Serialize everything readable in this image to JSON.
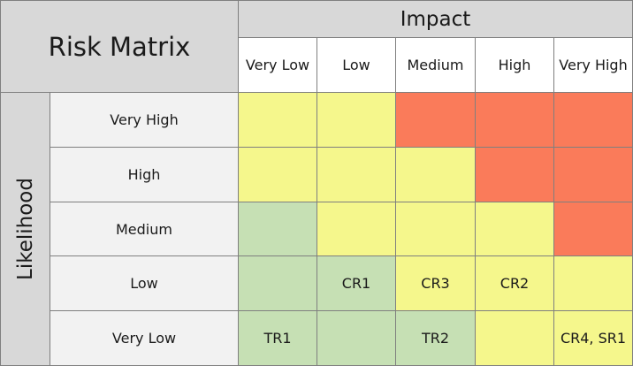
{
  "title": "Risk Matrix",
  "impact_label": "Impact",
  "likelihood_label": "Likelihood",
  "impact_levels": [
    "Very Low",
    "Low",
    "Medium",
    "High",
    "Very High"
  ],
  "likelihood_levels": [
    "Very High",
    "High",
    "Medium",
    "Low",
    "Very Low"
  ],
  "colors": {
    "header_gray": "#d8d8d8",
    "row_label_bg": "#f2f2f2",
    "green": "#c6e0b4",
    "yellow": "#f5f78c",
    "red": "#fa7b5a",
    "border": "#7f7f7f"
  },
  "grid": [
    [
      {
        "color": "yellow",
        "label": ""
      },
      {
        "color": "yellow",
        "label": ""
      },
      {
        "color": "red",
        "label": ""
      },
      {
        "color": "red",
        "label": ""
      },
      {
        "color": "red",
        "label": ""
      }
    ],
    [
      {
        "color": "yellow",
        "label": ""
      },
      {
        "color": "yellow",
        "label": ""
      },
      {
        "color": "yellow",
        "label": ""
      },
      {
        "color": "red",
        "label": ""
      },
      {
        "color": "red",
        "label": ""
      }
    ],
    [
      {
        "color": "green",
        "label": ""
      },
      {
        "color": "yellow",
        "label": ""
      },
      {
        "color": "yellow",
        "label": ""
      },
      {
        "color": "yellow",
        "label": ""
      },
      {
        "color": "red",
        "label": ""
      }
    ],
    [
      {
        "color": "green",
        "label": ""
      },
      {
        "color": "green",
        "label": "CR1"
      },
      {
        "color": "yellow",
        "label": "CR3"
      },
      {
        "color": "yellow",
        "label": "CR2"
      },
      {
        "color": "yellow",
        "label": ""
      }
    ],
    [
      {
        "color": "green",
        "label": "TR1"
      },
      {
        "color": "green",
        "label": ""
      },
      {
        "color": "green",
        "label": "TR2"
      },
      {
        "color": "yellow",
        "label": ""
      },
      {
        "color": "yellow",
        "label": "CR4, SR1"
      }
    ]
  ]
}
